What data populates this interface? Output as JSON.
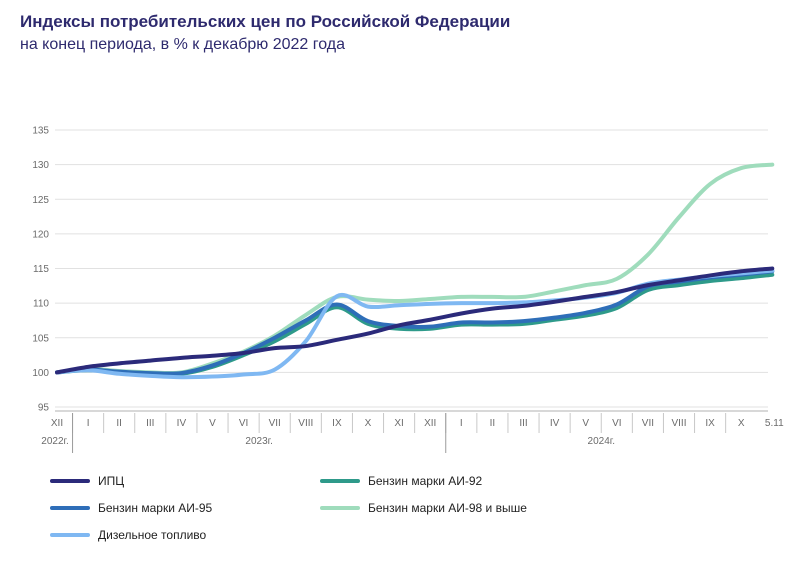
{
  "header": {
    "title": "Индексы потребительских цен по Российской Федерации",
    "subtitle": "на конец периода, в % к декабрю 2022 года"
  },
  "chart_data": {
    "type": "line",
    "title": "Индексы потребительских цен по Российской Федерации",
    "subtitle": "на конец периода, в % к декабрю 2022 года",
    "ylim": [
      95,
      135
    ],
    "yticks": [
      "95",
      "100",
      "105",
      "110",
      "115",
      "120",
      "125",
      "130",
      "135"
    ],
    "grid": true,
    "legend_position": "bottom",
    "x": [
      "XII",
      "I",
      "II",
      "III",
      "IV",
      "V",
      "VI",
      "VII",
      "VIII",
      "IX",
      "X",
      "XI",
      "XII",
      "I",
      "II",
      "III",
      "IV",
      "V",
      "VI",
      "VII",
      "VIII",
      "IX",
      "X",
      "5.11"
    ],
    "x_groups": [
      "2022г.",
      "2023г.",
      "2024г."
    ],
    "series": [
      {
        "name": "ИПЦ",
        "color": "#2b2a7a",
        "values": [
          100.0,
          100.8,
          101.3,
          101.7,
          102.1,
          102.4,
          102.8,
          103.5,
          103.8,
          104.7,
          105.6,
          106.8,
          107.6,
          108.5,
          109.2,
          109.6,
          110.2,
          110.9,
          111.6,
          112.6,
          113.3,
          114.0,
          114.6,
          115.0
        ]
      },
      {
        "name": "Бензин марки АИ-92",
        "color": "#2e9a8a",
        "values": [
          100.0,
          100.3,
          100.0,
          99.8,
          99.8,
          100.8,
          102.5,
          104.5,
          107.0,
          109.4,
          107.0,
          106.3,
          106.3,
          106.9,
          106.9,
          107.0,
          107.6,
          108.2,
          109.3,
          111.9,
          112.6,
          113.2,
          113.6,
          114.1
        ]
      },
      {
        "name": "Бензин марки АИ-95",
        "color": "#2e6eb8",
        "values": [
          100.0,
          100.4,
          100.1,
          99.9,
          99.9,
          101.0,
          102.8,
          105.0,
          107.5,
          109.8,
          107.4,
          106.7,
          106.6,
          107.2,
          107.2,
          107.4,
          107.9,
          108.6,
          109.8,
          112.4,
          113.1,
          113.7,
          114.1,
          114.6
        ]
      },
      {
        "name": "Бензин марки АИ-98 и выше",
        "color": "#9fdcbc",
        "values": [
          100.0,
          100.5,
          100.2,
          100.0,
          100.0,
          101.3,
          103.0,
          105.3,
          108.3,
          110.9,
          110.5,
          110.3,
          110.6,
          110.9,
          110.9,
          110.9,
          111.7,
          112.6,
          113.5,
          117.0,
          122.4,
          127.2,
          129.5,
          130.0
        ]
      },
      {
        "name": "Дизельное топливо",
        "color": "#7fb8f2",
        "values": [
          100.0,
          100.3,
          99.8,
          99.5,
          99.3,
          99.4,
          99.7,
          100.4,
          104.5,
          111.0,
          109.5,
          109.7,
          109.9,
          110.0,
          110.0,
          110.1,
          110.4,
          110.8,
          111.5,
          112.8,
          113.4,
          113.9,
          114.3,
          114.7
        ]
      }
    ]
  }
}
